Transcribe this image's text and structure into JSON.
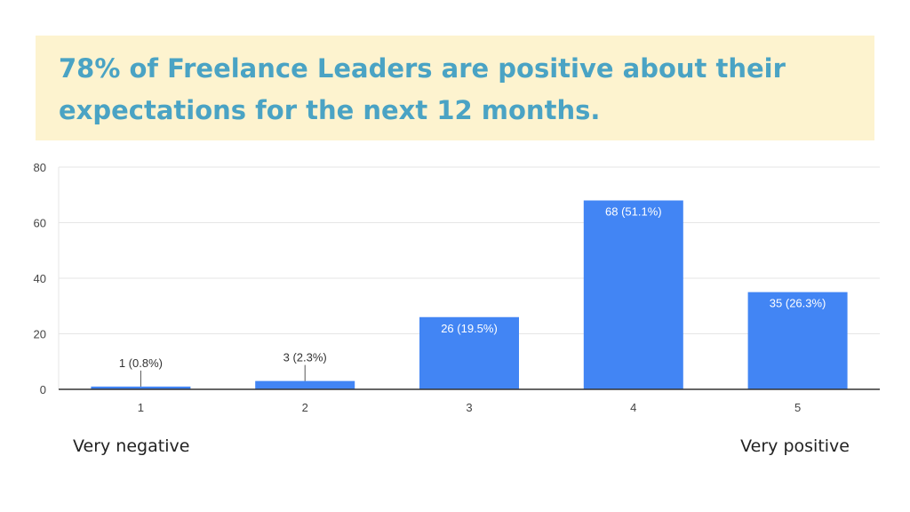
{
  "headline": {
    "line1": "78% of Freelance Leaders are positive about their",
    "line2": "expectations for the next 12 months."
  },
  "scale_labels": {
    "left": "Very negative",
    "right": "Very positive"
  },
  "colors": {
    "bar": "#4285f4",
    "headline_text": "#4aa3c4",
    "headline_background": "#fdf3cf"
  },
  "chart_data": {
    "type": "bar",
    "categories": [
      "1",
      "2",
      "3",
      "4",
      "5"
    ],
    "values": [
      1,
      3,
      26,
      68,
      35
    ],
    "data_labels": [
      "1 (0.8%)",
      "3 (2.3%)",
      "26 (19.5%)",
      "68 (51.1%)",
      "35 (26.3%)"
    ],
    "ylim": [
      0,
      80
    ],
    "yticks": [
      0,
      20,
      40,
      60,
      80
    ],
    "grid": true
  }
}
